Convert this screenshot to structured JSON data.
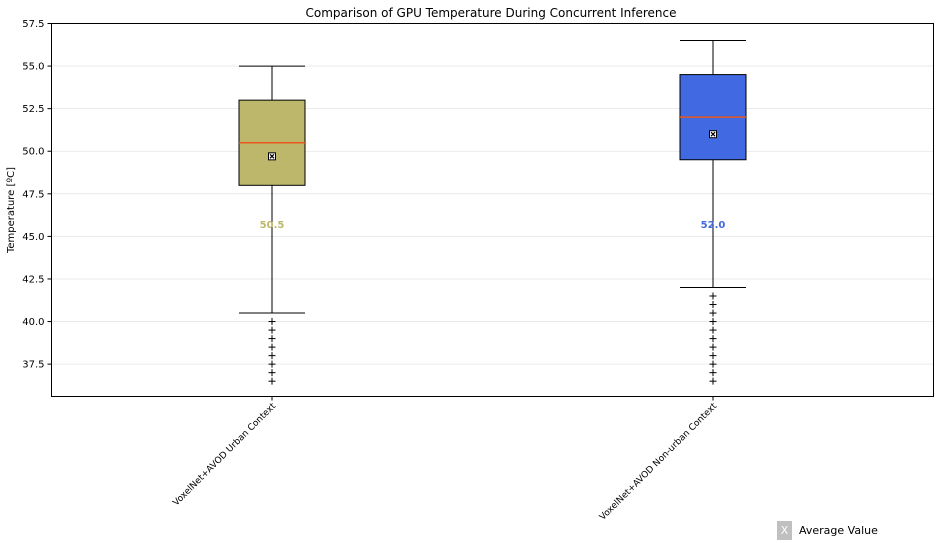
{
  "chart_data": {
    "type": "box",
    "title": "Comparison of GPU Temperature During Concurrent Inference",
    "xlabel": "",
    "ylabel": "Temperature [ºC]",
    "ylim": [
      35.6,
      57.5
    ],
    "yticks": [
      37.5,
      40.0,
      42.5,
      45.0,
      47.5,
      50.0,
      52.5,
      55.0,
      57.5
    ],
    "grid": "horizontal",
    "categories": [
      "VoxelNet+AVOD Urban Context",
      "VoxelNet+AVOD Non-urban Context"
    ],
    "boxes": [
      {
        "category": "VoxelNet+AVOD Urban Context",
        "color": "#bdb76b",
        "whisker_low": 40.5,
        "q1": 48.0,
        "median": 50.5,
        "q3": 53.0,
        "whisker_high": 55.0,
        "mean": 49.7,
        "median_label": "50.5",
        "outliers": [
          40.0,
          39.5,
          39.0,
          38.5,
          38.0,
          37.5,
          37.0,
          36.5
        ]
      },
      {
        "category": "VoxelNet+AVOD Non-urban Context",
        "color": "#4169e1",
        "whisker_low": 42.0,
        "q1": 49.5,
        "median": 52.0,
        "q3": 54.5,
        "whisker_high": 56.5,
        "mean": 51.0,
        "median_label": "52.0",
        "outliers": [
          41.5,
          41.0,
          40.5,
          40.0,
          39.5,
          39.0,
          38.5,
          38.0,
          37.5,
          37.0,
          36.5
        ]
      }
    ],
    "median_line_color": "#e8571b",
    "legend": {
      "position": "bottom-right",
      "marker": "X",
      "label": "Average Value",
      "marker_color": "#c0c0c0"
    }
  }
}
